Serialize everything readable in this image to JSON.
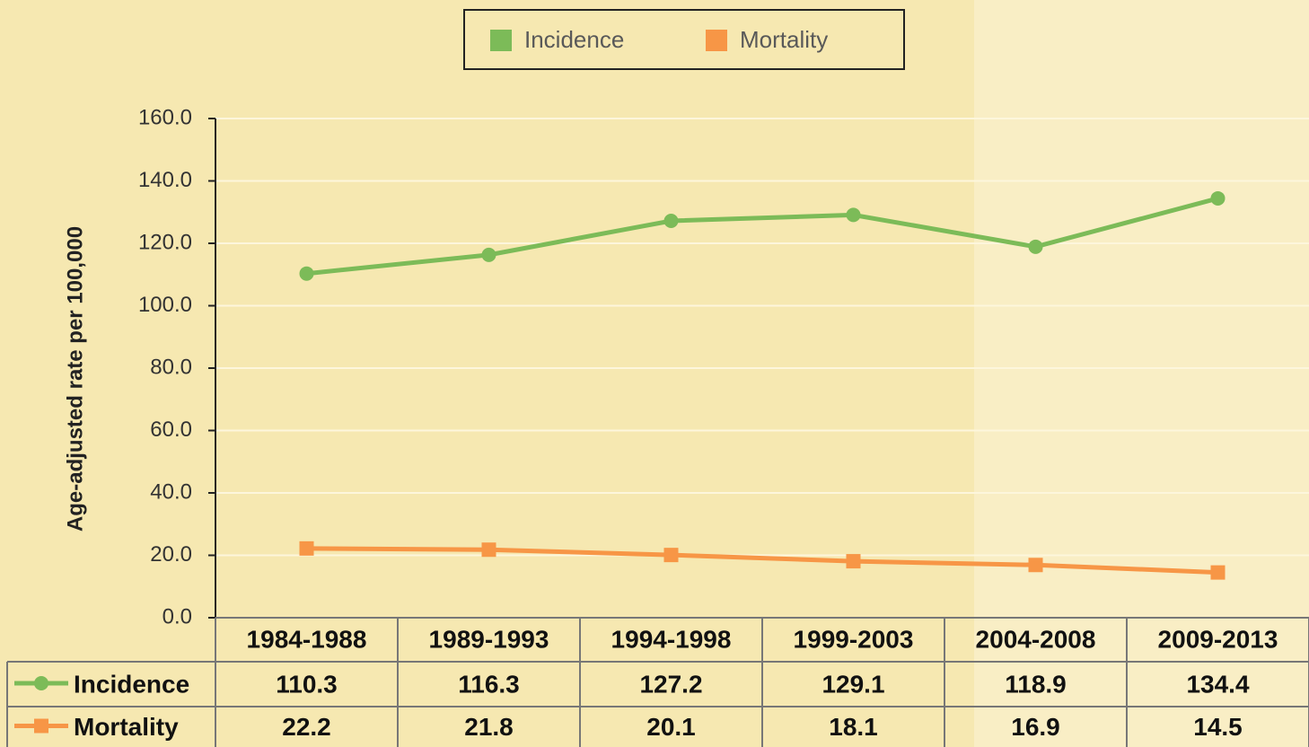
{
  "chart_data": {
    "type": "line",
    "y_label": "Age-adjusted rate per 100,000",
    "categories": [
      "1984-1988",
      "1989-1993",
      "1994-1998",
      "1999-2003",
      "2004-2008",
      "2009-2013"
    ],
    "series": [
      {
        "name": "Incidence",
        "color": "#7cbb58",
        "marker": "circle",
        "values": [
          110.3,
          116.3,
          127.2,
          129.1,
          118.9,
          134.4
        ]
      },
      {
        "name": "Mortality",
        "color": "#f79646",
        "marker": "square",
        "values": [
          22.2,
          21.8,
          20.1,
          18.1,
          16.9,
          14.5
        ]
      }
    ],
    "ylim": [
      0,
      160
    ],
    "yticks": [
      {
        "value": 0,
        "label": "0.0"
      },
      {
        "value": 20,
        "label": "20.0"
      },
      {
        "value": 40,
        "label": "40.0"
      },
      {
        "value": 60,
        "label": "60.0"
      },
      {
        "value": 80,
        "label": "80.0"
      },
      {
        "value": 100,
        "label": "100.0"
      },
      {
        "value": 120,
        "label": "120.0"
      },
      {
        "value": 140,
        "label": "140.0"
      },
      {
        "value": 160,
        "label": "160.0"
      }
    ],
    "grid": true,
    "legend": "top"
  }
}
